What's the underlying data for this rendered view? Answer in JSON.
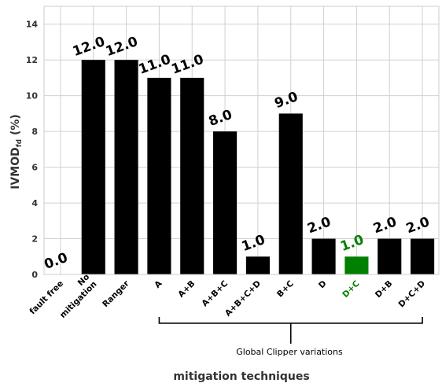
{
  "chart_data": {
    "type": "bar",
    "categories": [
      "fault free",
      "No\nmitigation",
      "Ranger",
      "A",
      "A+B",
      "A+B+C",
      "A+B+C+D",
      "B+C",
      "D",
      "D+C",
      "D+B",
      "D+C+D"
    ],
    "values": [
      0.0,
      12.0,
      12.0,
      11.0,
      11.0,
      8.0,
      1.0,
      9.0,
      2.0,
      1.0,
      2.0,
      2.0
    ],
    "value_labels": [
      "0.0",
      "12.0",
      "12.0",
      "11.0",
      "11.0",
      "8.0",
      "1.0",
      "9.0",
      "2.0",
      "1.0",
      "2.0",
      "2.0"
    ],
    "highlight_index": 9,
    "bar_color": "#000000",
    "highlight_color": "#008000",
    "ylabel_main": "IVMOD",
    "ylabel_sub": "fd",
    "ylabel_suffix": " (%)",
    "xlabel": "mitigation techniques",
    "ylim": [
      0,
      15
    ],
    "yticks": [
      0,
      2,
      4,
      6,
      8,
      10,
      12,
      14
    ],
    "grid": true,
    "annotation": {
      "text": "Global Clipper variations",
      "span_from": "A",
      "span_to": "D+C+D"
    }
  }
}
